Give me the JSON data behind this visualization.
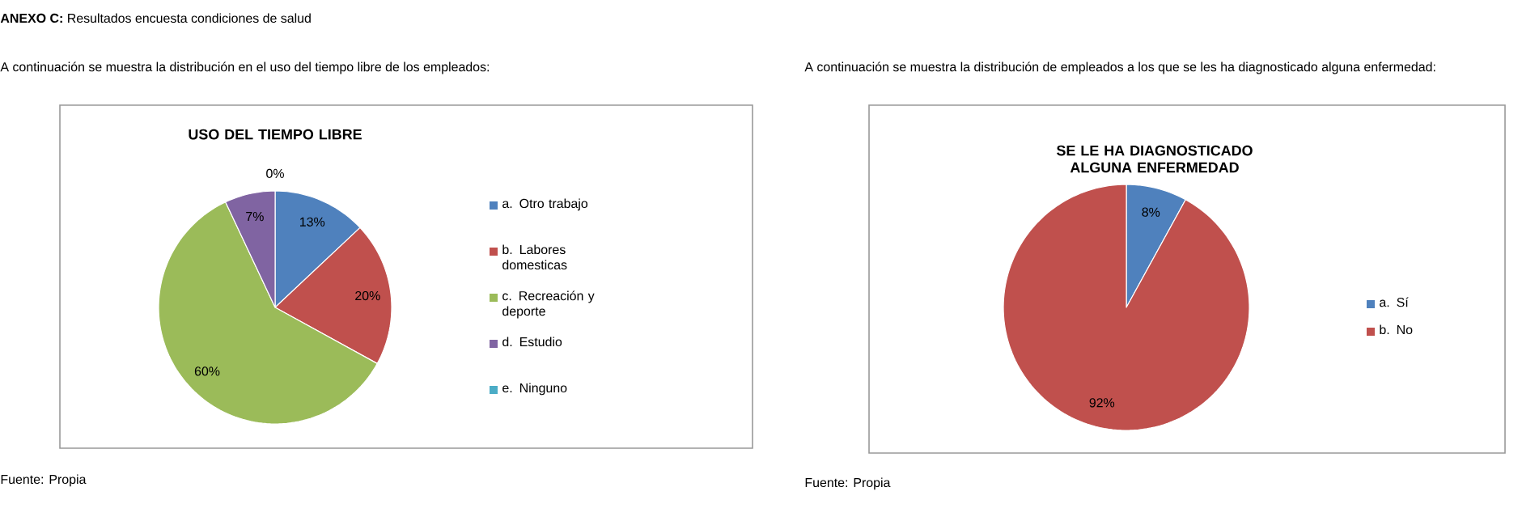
{
  "chart_data": [
    {
      "type": "pie",
      "title": "USO DEL TIEMPO LIBRE",
      "categories": [
        "a.  Otro trabajo",
        "b.  Labores domesticas",
        "c.  Recreación y deporte",
        "d.  Estudio",
        "e.  Ninguno"
      ],
      "values": [
        13,
        20,
        60,
        7,
        0
      ],
      "colors": [
        "#4f81bd",
        "#c0504d",
        "#9bbb59",
        "#8064a2",
        "#4bacc6"
      ],
      "value_labels": [
        "13%",
        "20%",
        "60%",
        "7%",
        "0%"
      ],
      "legend": "right",
      "annotations": [
        "**ANEXO C:** Resultados encuesta condiciones de salud",
        "A continuación se muestra la distribución en el uso del tiempo libre de los empleados:",
        "Fuente: Propia"
      ]
    },
    {
      "type": "pie",
      "title": "SE LE HA DIAGNOSTICADO ALGUNA ENFERMEDAD",
      "categories": [
        "a.  Sí",
        "b.  No"
      ],
      "values": [
        8,
        92
      ],
      "colors": [
        "#4f81bd",
        "#c0504d"
      ],
      "value_labels": [
        "8%",
        "92%"
      ],
      "legend": "right",
      "annotations": [
        "A continuación se muestra la distribución de empleados a los que se les ha diagnosticado alguna enfermedad:",
        "Fuente: Propia"
      ]
    }
  ]
}
